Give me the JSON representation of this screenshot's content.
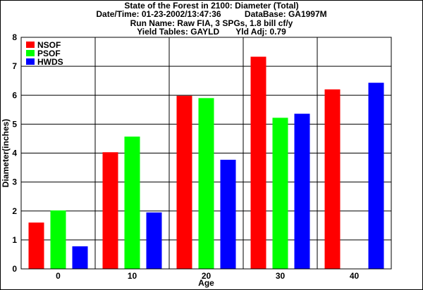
{
  "header": {
    "title": "State of the Forest in 2100: Diameter (Total)",
    "datetime": "Date/Time: 01-23-2002/13:47:36",
    "database": "DataBase: GA1997M",
    "run_name": "Run Name: Raw FIA, 3 SPGs, 1.8 bill cf/y",
    "yield_tables": "Yield Tables: GAYLD",
    "yld_adj": "Yld Adj: 0.79"
  },
  "chart_data": {
    "type": "bar",
    "categories": [
      "0",
      "10",
      "20",
      "30",
      "40"
    ],
    "series": [
      {
        "name": "NSOF",
        "color": "#ff0000",
        "values": [
          1.6,
          4.03,
          5.98,
          7.33,
          6.2
        ]
      },
      {
        "name": "PSOF",
        "color": "#00ff00",
        "values": [
          2.02,
          4.57,
          5.9,
          5.22,
          0.0
        ]
      },
      {
        "name": "HWDS",
        "color": "#0000ff",
        "values": [
          0.78,
          1.95,
          3.77,
          5.36,
          6.43
        ]
      }
    ],
    "xlabel": "Age",
    "ylabel": "Diameter(inches)",
    "ylim": [
      0,
      8
    ],
    "yticks": [
      0,
      1,
      2,
      3,
      4,
      5,
      6,
      7,
      8
    ],
    "grid": true,
    "legend": "top-left"
  }
}
